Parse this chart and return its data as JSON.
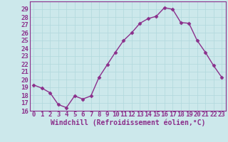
{
  "x": [
    0,
    1,
    2,
    3,
    4,
    5,
    6,
    7,
    8,
    9,
    10,
    11,
    12,
    13,
    14,
    15,
    16,
    17,
    18,
    19,
    20,
    21,
    22,
    23
  ],
  "y": [
    19.3,
    18.9,
    18.3,
    16.8,
    16.4,
    17.9,
    17.5,
    17.9,
    20.3,
    21.9,
    23.5,
    25.0,
    26.0,
    27.2,
    27.8,
    28.1,
    29.2,
    29.0,
    27.3,
    27.2,
    25.0,
    23.5,
    21.8,
    20.3
  ],
  "line_color": "#8b2f8b",
  "marker": "D",
  "marker_size": 2.5,
  "bg_color": "#cce8eb",
  "grid_color": "#b0d8dc",
  "xlabel": "Windchill (Refroidissement éolien,°C)",
  "xlabel_fontsize": 7,
  "ylim": [
    16,
    30
  ],
  "xlim": [
    -0.5,
    23.5
  ],
  "yticks": [
    16,
    17,
    18,
    19,
    20,
    21,
    22,
    23,
    24,
    25,
    26,
    27,
    28,
    29
  ],
  "xticks": [
    0,
    1,
    2,
    3,
    4,
    5,
    6,
    7,
    8,
    9,
    10,
    11,
    12,
    13,
    14,
    15,
    16,
    17,
    18,
    19,
    20,
    21,
    22,
    23
  ],
  "tick_fontsize": 6.5,
  "tick_color": "#8b2f8b",
  "spine_color": "#8b2f8b",
  "linewidth": 1.0
}
